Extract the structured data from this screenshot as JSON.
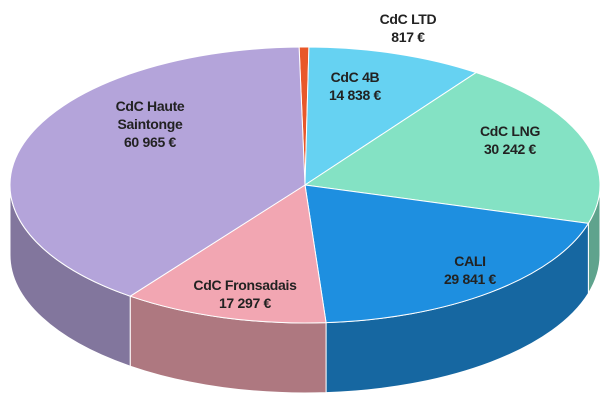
{
  "chart_data": {
    "type": "pie",
    "categories": [
      "CdC LTD",
      "CdC 4B",
      "CdC LNG",
      "CALI",
      "CdC Fronsadais",
      "CdC Haute Saintonge"
    ],
    "values": [
      817,
      14838,
      30242,
      29841,
      17297,
      60965
    ],
    "value_labels": [
      "817 €",
      "14 838 €",
      "30 242 €",
      "29 841 €",
      "17 297 €",
      "60 965 €"
    ],
    "colors": [
      "#e8582a",
      "#66d2f2",
      "#84e2c4",
      "#1e8fe0",
      "#f2a6b2",
      "#b4a4da"
    ]
  }
}
